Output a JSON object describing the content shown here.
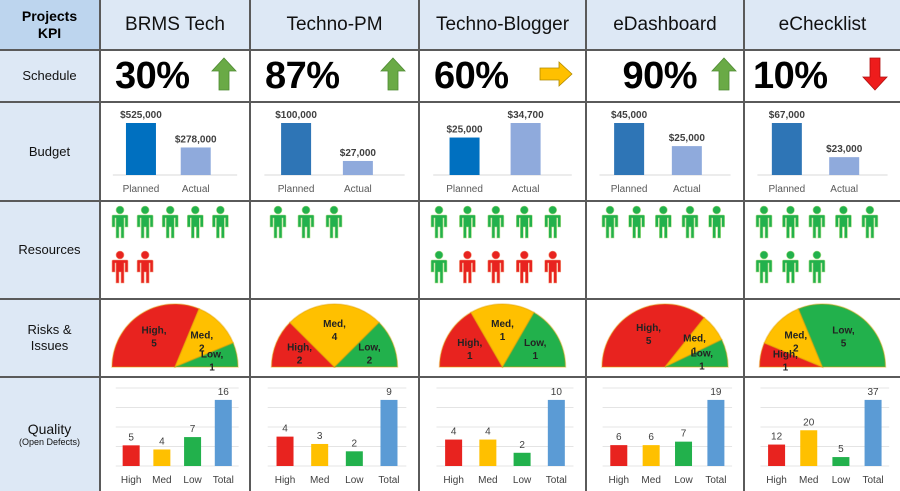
{
  "header": {
    "corner_line1": "Projects",
    "corner_line2": "KPI"
  },
  "rows": {
    "schedule": "Schedule",
    "budget": "Budget",
    "resources": "Resources",
    "risks_line1": "Risks &",
    "risks_line2": "Issues",
    "quality": "Quality",
    "quality_sub": "(Open Defects)"
  },
  "colors": {
    "header_bg": "#dde8f5",
    "corner_bg": "#bdd5ee",
    "green": "#22b14c",
    "red": "#e8231f",
    "yellow": "#ffc000",
    "arrow_green": "#6aaa46",
    "arrow_yellow": "#ffc000",
    "arrow_red": "#ee1c1c",
    "planned_bar": "#2e75b6",
    "actual_bar": "#8faadc",
    "total_bar": "#5b9bd5"
  },
  "budget_labels": {
    "planned": "Planned",
    "actual": "Actual"
  },
  "quality_labels": [
    "High",
    "Med",
    "Low",
    "Total"
  ],
  "projects": [
    {
      "name": "BRMS Tech",
      "schedule": {
        "value": "30%",
        "trend": "up"
      },
      "budget": {
        "planned": 525000,
        "actual": 278000,
        "planned_label": "$525,000",
        "actual_label": "$278,000"
      },
      "resources": {
        "green": 5,
        "red": 2
      },
      "risks": {
        "high": 5,
        "med": 2,
        "low": 1
      },
      "quality": {
        "high": 5,
        "med": 4,
        "low": 7,
        "total": 16
      }
    },
    {
      "name": "Techno-PM",
      "schedule": {
        "value": "87%",
        "trend": "up"
      },
      "budget": {
        "planned": 100000,
        "actual": 27000,
        "planned_label": "$100,000",
        "actual_label": "$27,000"
      },
      "resources": {
        "green": 3,
        "red": 0
      },
      "risks": {
        "high": 2,
        "med": 4,
        "low": 2
      },
      "quality": {
        "high": 4,
        "med": 3,
        "low": 2,
        "total": 9
      }
    },
    {
      "name": "Techno-Blogger",
      "schedule": {
        "value": "60%",
        "trend": "flat"
      },
      "budget": {
        "planned": 25000,
        "actual": 34700,
        "planned_label": "$25,000",
        "actual_label": "$34,700"
      },
      "resources": {
        "green": 6,
        "red": 4
      },
      "risks": {
        "high": 1,
        "med": 1,
        "low": 1
      },
      "quality": {
        "high": 4,
        "med": 4,
        "low": 2,
        "total": 10
      }
    },
    {
      "name": "eDashboard",
      "schedule": {
        "value": "90%",
        "trend": "up"
      },
      "budget": {
        "planned": 45000,
        "actual": 25000,
        "planned_label": "$45,000",
        "actual_label": "$25,000"
      },
      "resources": {
        "green": 5,
        "red": 0
      },
      "risks": {
        "high": 5,
        "med": 1,
        "low": 1
      },
      "quality": {
        "high": 6,
        "med": 6,
        "low": 7,
        "total": 19
      }
    },
    {
      "name": "eChecklist",
      "schedule": {
        "value": "10%",
        "trend": "down"
      },
      "budget": {
        "planned": 67000,
        "actual": 23000,
        "planned_label": "$67,000",
        "actual_label": "$23,000"
      },
      "resources": {
        "green": 8,
        "red": 0
      },
      "risks": {
        "high": 1,
        "med": 2,
        "low": 5
      },
      "quality": {
        "high": 12,
        "med": 20,
        "low": 5,
        "total": 37
      }
    }
  ]
}
